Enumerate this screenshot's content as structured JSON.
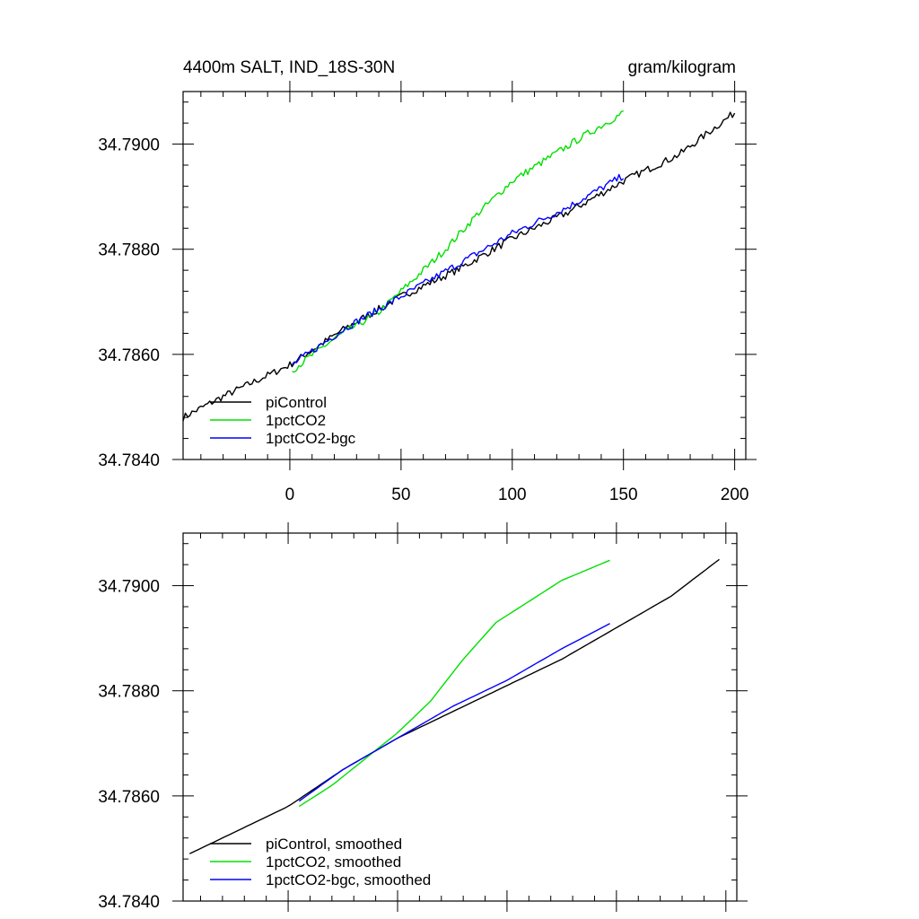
{
  "chart_data": [
    {
      "type": "line",
      "title": "4400m SALT, IND_18S-30N",
      "units": "gram/kilogram",
      "xlim": [
        -48,
        205
      ],
      "ylim": [
        34.784,
        34.791
      ],
      "xticks": [
        0,
        50,
        100,
        150,
        200
      ],
      "xtick_labels": [
        "0",
        "50",
        "100",
        "150",
        "200"
      ],
      "yticks": [
        34.784,
        34.786,
        34.788,
        34.79
      ],
      "ytick_labels": [
        "34.7840",
        "34.7860",
        "34.7880",
        "34.7900"
      ],
      "legend": {
        "placement": "bottom-left",
        "entries": [
          "piControl",
          "1pctCO2",
          "1pctCO2-bgc"
        ]
      },
      "noisy": true,
      "series": [
        {
          "name": "piControl",
          "color": "#000000",
          "x": [
            -48,
            -30,
            0,
            25,
            50,
            75,
            100,
            125,
            150,
            175,
            200
          ],
          "y": [
            34.7848,
            34.7852,
            34.7858,
            34.7865,
            34.7871,
            34.7876,
            34.7882,
            34.7887,
            34.7893,
            34.7898,
            34.7906
          ]
        },
        {
          "name": "1pctCO2",
          "color": "#00e000",
          "x": [
            1,
            20,
            40,
            55,
            70,
            85,
            100,
            115,
            130,
            150
          ],
          "y": [
            34.7857,
            34.7863,
            34.7868,
            34.7874,
            34.788,
            34.7887,
            34.7893,
            34.7897,
            34.7901,
            34.7906
          ]
        },
        {
          "name": "1pctCO2-bgc",
          "color": "#0000ff",
          "x": [
            1,
            25,
            50,
            75,
            100,
            125,
            150
          ],
          "y": [
            34.7858,
            34.7865,
            34.7871,
            34.7877,
            34.7883,
            34.7888,
            34.7894
          ]
        }
      ]
    },
    {
      "type": "line",
      "title": "",
      "units": "",
      "xlim": [
        -48,
        205
      ],
      "ylim": [
        34.784,
        34.791
      ],
      "xticks": [
        0,
        50,
        100,
        150,
        200
      ],
      "xtick_labels": [],
      "yticks": [
        34.784,
        34.786,
        34.788,
        34.79
      ],
      "ytick_labels": [
        "34.7840",
        "34.7860",
        "34.7880",
        "34.7900"
      ],
      "legend": {
        "placement": "bottom-left",
        "entries": [
          "piControl, smoothed",
          "1pctCO2, smoothed",
          "1pctCO2-bgc, smoothed"
        ]
      },
      "noisy": false,
      "series": [
        {
          "name": "piControl, smoothed",
          "color": "#000000",
          "x": [
            -45,
            -20,
            0,
            25,
            50,
            75,
            100,
            125,
            150,
            175,
            197
          ],
          "y": [
            34.7849,
            34.7854,
            34.7858,
            34.7865,
            34.7871,
            34.7876,
            34.7881,
            34.7886,
            34.7892,
            34.7898,
            34.7905
          ]
        },
        {
          "name": "1pctCO2, smoothed",
          "color": "#00e000",
          "x": [
            5,
            20,
            35,
            50,
            65,
            80,
            95,
            110,
            125,
            148
          ],
          "y": [
            34.7858,
            34.7862,
            34.7867,
            34.7872,
            34.7878,
            34.7886,
            34.7893,
            34.7897,
            34.7901,
            34.7905
          ]
        },
        {
          "name": "1pctCO2-bgc, smoothed",
          "color": "#0000ff",
          "x": [
            5,
            25,
            50,
            75,
            100,
            125,
            148
          ],
          "y": [
            34.7859,
            34.7865,
            34.7871,
            34.7877,
            34.7882,
            34.7888,
            34.7893
          ]
        }
      ]
    }
  ]
}
